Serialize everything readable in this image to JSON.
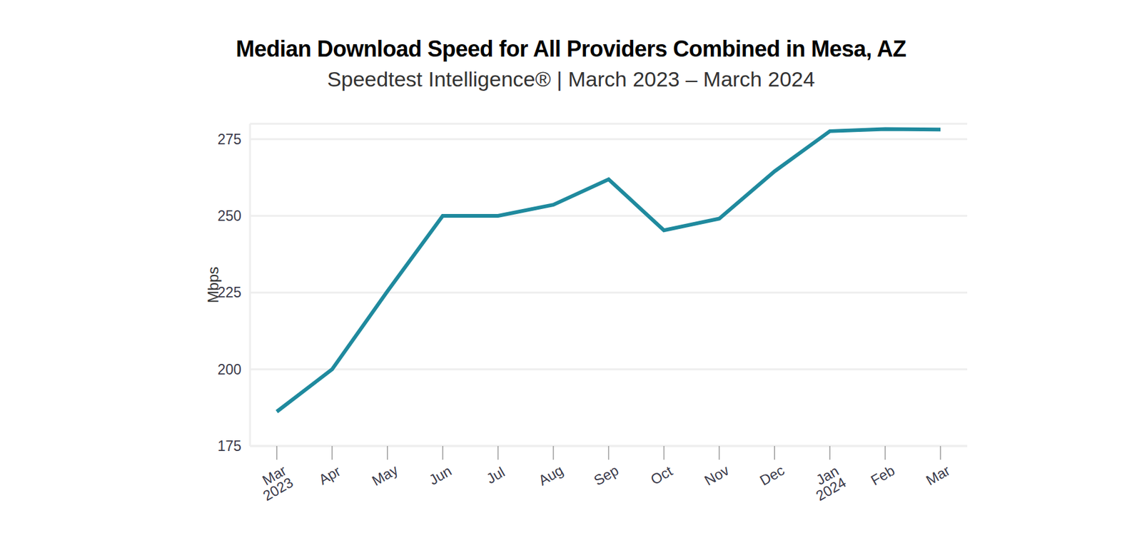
{
  "chart_data": {
    "type": "line",
    "title": "Median Download Speed for All Providers Combined in Mesa, AZ",
    "subtitle": "Speedtest Intelligence® | March 2023 – March 2024",
    "y_label": "Mbps",
    "categories": [
      "Mar 2023",
      "Apr",
      "May",
      "Jun",
      "Jul",
      "Aug",
      "Sep",
      "Oct",
      "Nov",
      "Dec",
      "Jan 2024",
      "Feb",
      "Mar"
    ],
    "values": [
      186.2,
      200,
      225.4,
      250,
      250,
      253.6,
      261.9,
      245.3,
      249.1,
      264.5,
      277.6,
      278.3,
      278.1
    ],
    "color": "#1f8a9e",
    "ylim": [
      175,
      280
    ],
    "yticks": [
      175,
      200,
      225,
      250,
      275
    ],
    "grid": true
  }
}
